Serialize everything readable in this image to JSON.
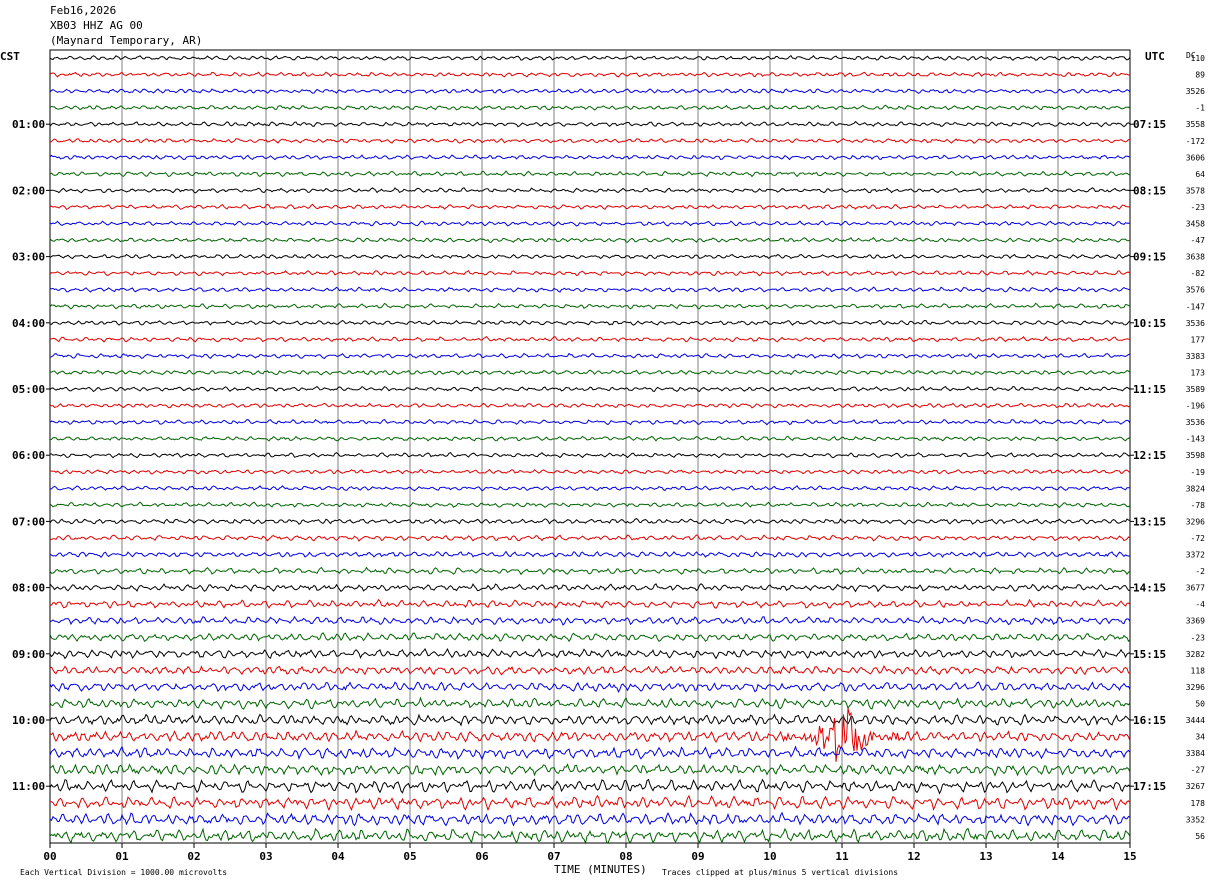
{
  "header": {
    "date": "Feb16,2026",
    "station": "XB03 HHZ AG 00",
    "location": "(Maynard Temporary, AR)"
  },
  "left_timezone": "CST",
  "right_timezone": "UTC",
  "dc_label": "DC",
  "footer": {
    "scale_note": "Each Vertical Division = 1000.00 microvolts",
    "xlabel": "TIME (MINUTES)",
    "clip_note": "Traces clipped at plus/minus 5 vertical divisions"
  },
  "colors": {
    "trace_cycle": [
      "#000000",
      "#e00000",
      "#0000e0",
      "#006400"
    ],
    "grid": "#808080"
  },
  "chart_data": {
    "type": "line",
    "title": "",
    "xlabel": "TIME (MINUTES)",
    "ylabel": "",
    "xlim": [
      0,
      15
    ],
    "x_ticks": [
      "00",
      "01",
      "02",
      "03",
      "04",
      "05",
      "06",
      "07",
      "08",
      "09",
      "10",
      "11",
      "12",
      "13",
      "14",
      "15"
    ],
    "rows_per_hour": 4,
    "row_duration_minutes": 15,
    "left_hour_labels": [
      "01:00",
      "02:00",
      "03:00",
      "04:00",
      "05:00",
      "06:00",
      "07:00",
      "08:00",
      "09:00",
      "10:00",
      "11:00"
    ],
    "right_hour_labels": [
      "07:15",
      "08:15",
      "09:15",
      "10:15",
      "11:15",
      "12:15",
      "13:15",
      "14:15",
      "15:15",
      "16:15",
      "17:15"
    ],
    "dc_offsets": [
      "110",
      "89",
      "3526",
      "-1",
      "3558",
      "-172",
      "3606",
      "64",
      "3578",
      "-23",
      "3458",
      "-47",
      "3638",
      "-82",
      "3576",
      "-147",
      "3536",
      "177",
      "3383",
      "173",
      "3589",
      "-196",
      "3536",
      "-143",
      "3598",
      "-19",
      "3824",
      "-78",
      "3296",
      "-72",
      "3372",
      "-2",
      "3677",
      "-4",
      "3369",
      "-23",
      "3282",
      "118",
      "3296",
      "50",
      "3444",
      "34",
      "3384",
      "-27",
      "3267",
      "178",
      "3352",
      "56"
    ],
    "activity_level": [
      1,
      1,
      1,
      1,
      1,
      1,
      1,
      1,
      1,
      1,
      1,
      1,
      1,
      1,
      1,
      1,
      1,
      1,
      1,
      1,
      1,
      1,
      1,
      1,
      1,
      1,
      1,
      1,
      1.2,
      1.2,
      1.3,
      1.3,
      1.5,
      1.6,
      1.7,
      1.8,
      1.9,
      2,
      2.1,
      2.2,
      2.4,
      2.5,
      2.5,
      2.6,
      2.6,
      2.7,
      2.7,
      2.8
    ],
    "event": {
      "row_index": 41,
      "start_minute": 10.2,
      "peak_minute": 11.0,
      "end_minute": 11.8,
      "peak_divisions": 5
    }
  }
}
